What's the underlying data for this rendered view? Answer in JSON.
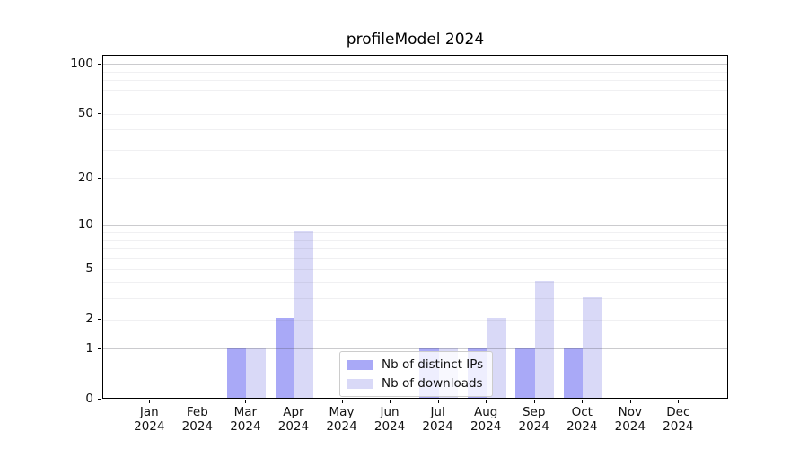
{
  "title": "profileModel 2024",
  "legend": {
    "items": [
      {
        "label": "Nb of distinct IPs",
        "color": "#a9a9f7"
      },
      {
        "label": "Nb of downloads",
        "color": "#d9d9f7"
      }
    ]
  },
  "chart_data": {
    "type": "bar",
    "title": "profileModel 2024",
    "xlabel": "",
    "ylabel": "",
    "categories": [
      {
        "month": "Jan",
        "year": "2024"
      },
      {
        "month": "Feb",
        "year": "2024"
      },
      {
        "month": "Mar",
        "year": "2024"
      },
      {
        "month": "Apr",
        "year": "2024"
      },
      {
        "month": "May",
        "year": "2024"
      },
      {
        "month": "Jun",
        "year": "2024"
      },
      {
        "month": "Jul",
        "year": "2024"
      },
      {
        "month": "Aug",
        "year": "2024"
      },
      {
        "month": "Sep",
        "year": "2024"
      },
      {
        "month": "Oct",
        "year": "2024"
      },
      {
        "month": "Nov",
        "year": "2024"
      },
      {
        "month": "Dec",
        "year": "2024"
      }
    ],
    "series": [
      {
        "name": "Nb of distinct IPs",
        "color": "#a9a9f7",
        "values": [
          0,
          0,
          1,
          2,
          0,
          0,
          1,
          1,
          1,
          1,
          0,
          0
        ]
      },
      {
        "name": "Nb of downloads",
        "color": "#d9d9f7",
        "values": [
          0,
          0,
          1,
          9,
          0,
          0,
          1,
          2,
          4,
          3,
          0,
          0
        ]
      }
    ],
    "yscale": "log1p",
    "ylim": [
      0,
      113
    ],
    "y_ticks": [
      {
        "label": "0",
        "value": 0
      },
      {
        "label": "1",
        "value": 1
      },
      {
        "label": "2",
        "value": 2
      },
      {
        "label": "5",
        "value": 5
      },
      {
        "label": "10",
        "value": 10
      },
      {
        "label": "20",
        "value": 20
      },
      {
        "label": "50",
        "value": 50
      },
      {
        "label": "100",
        "value": 100
      }
    ],
    "y_major_gridlines": [
      1,
      10,
      100
    ],
    "y_minor_gridlines": [
      2,
      3,
      4,
      5,
      6,
      7,
      8,
      9,
      20,
      30,
      40,
      50,
      60,
      70,
      80,
      90
    ],
    "grid": true,
    "legend_position": "lower center"
  }
}
